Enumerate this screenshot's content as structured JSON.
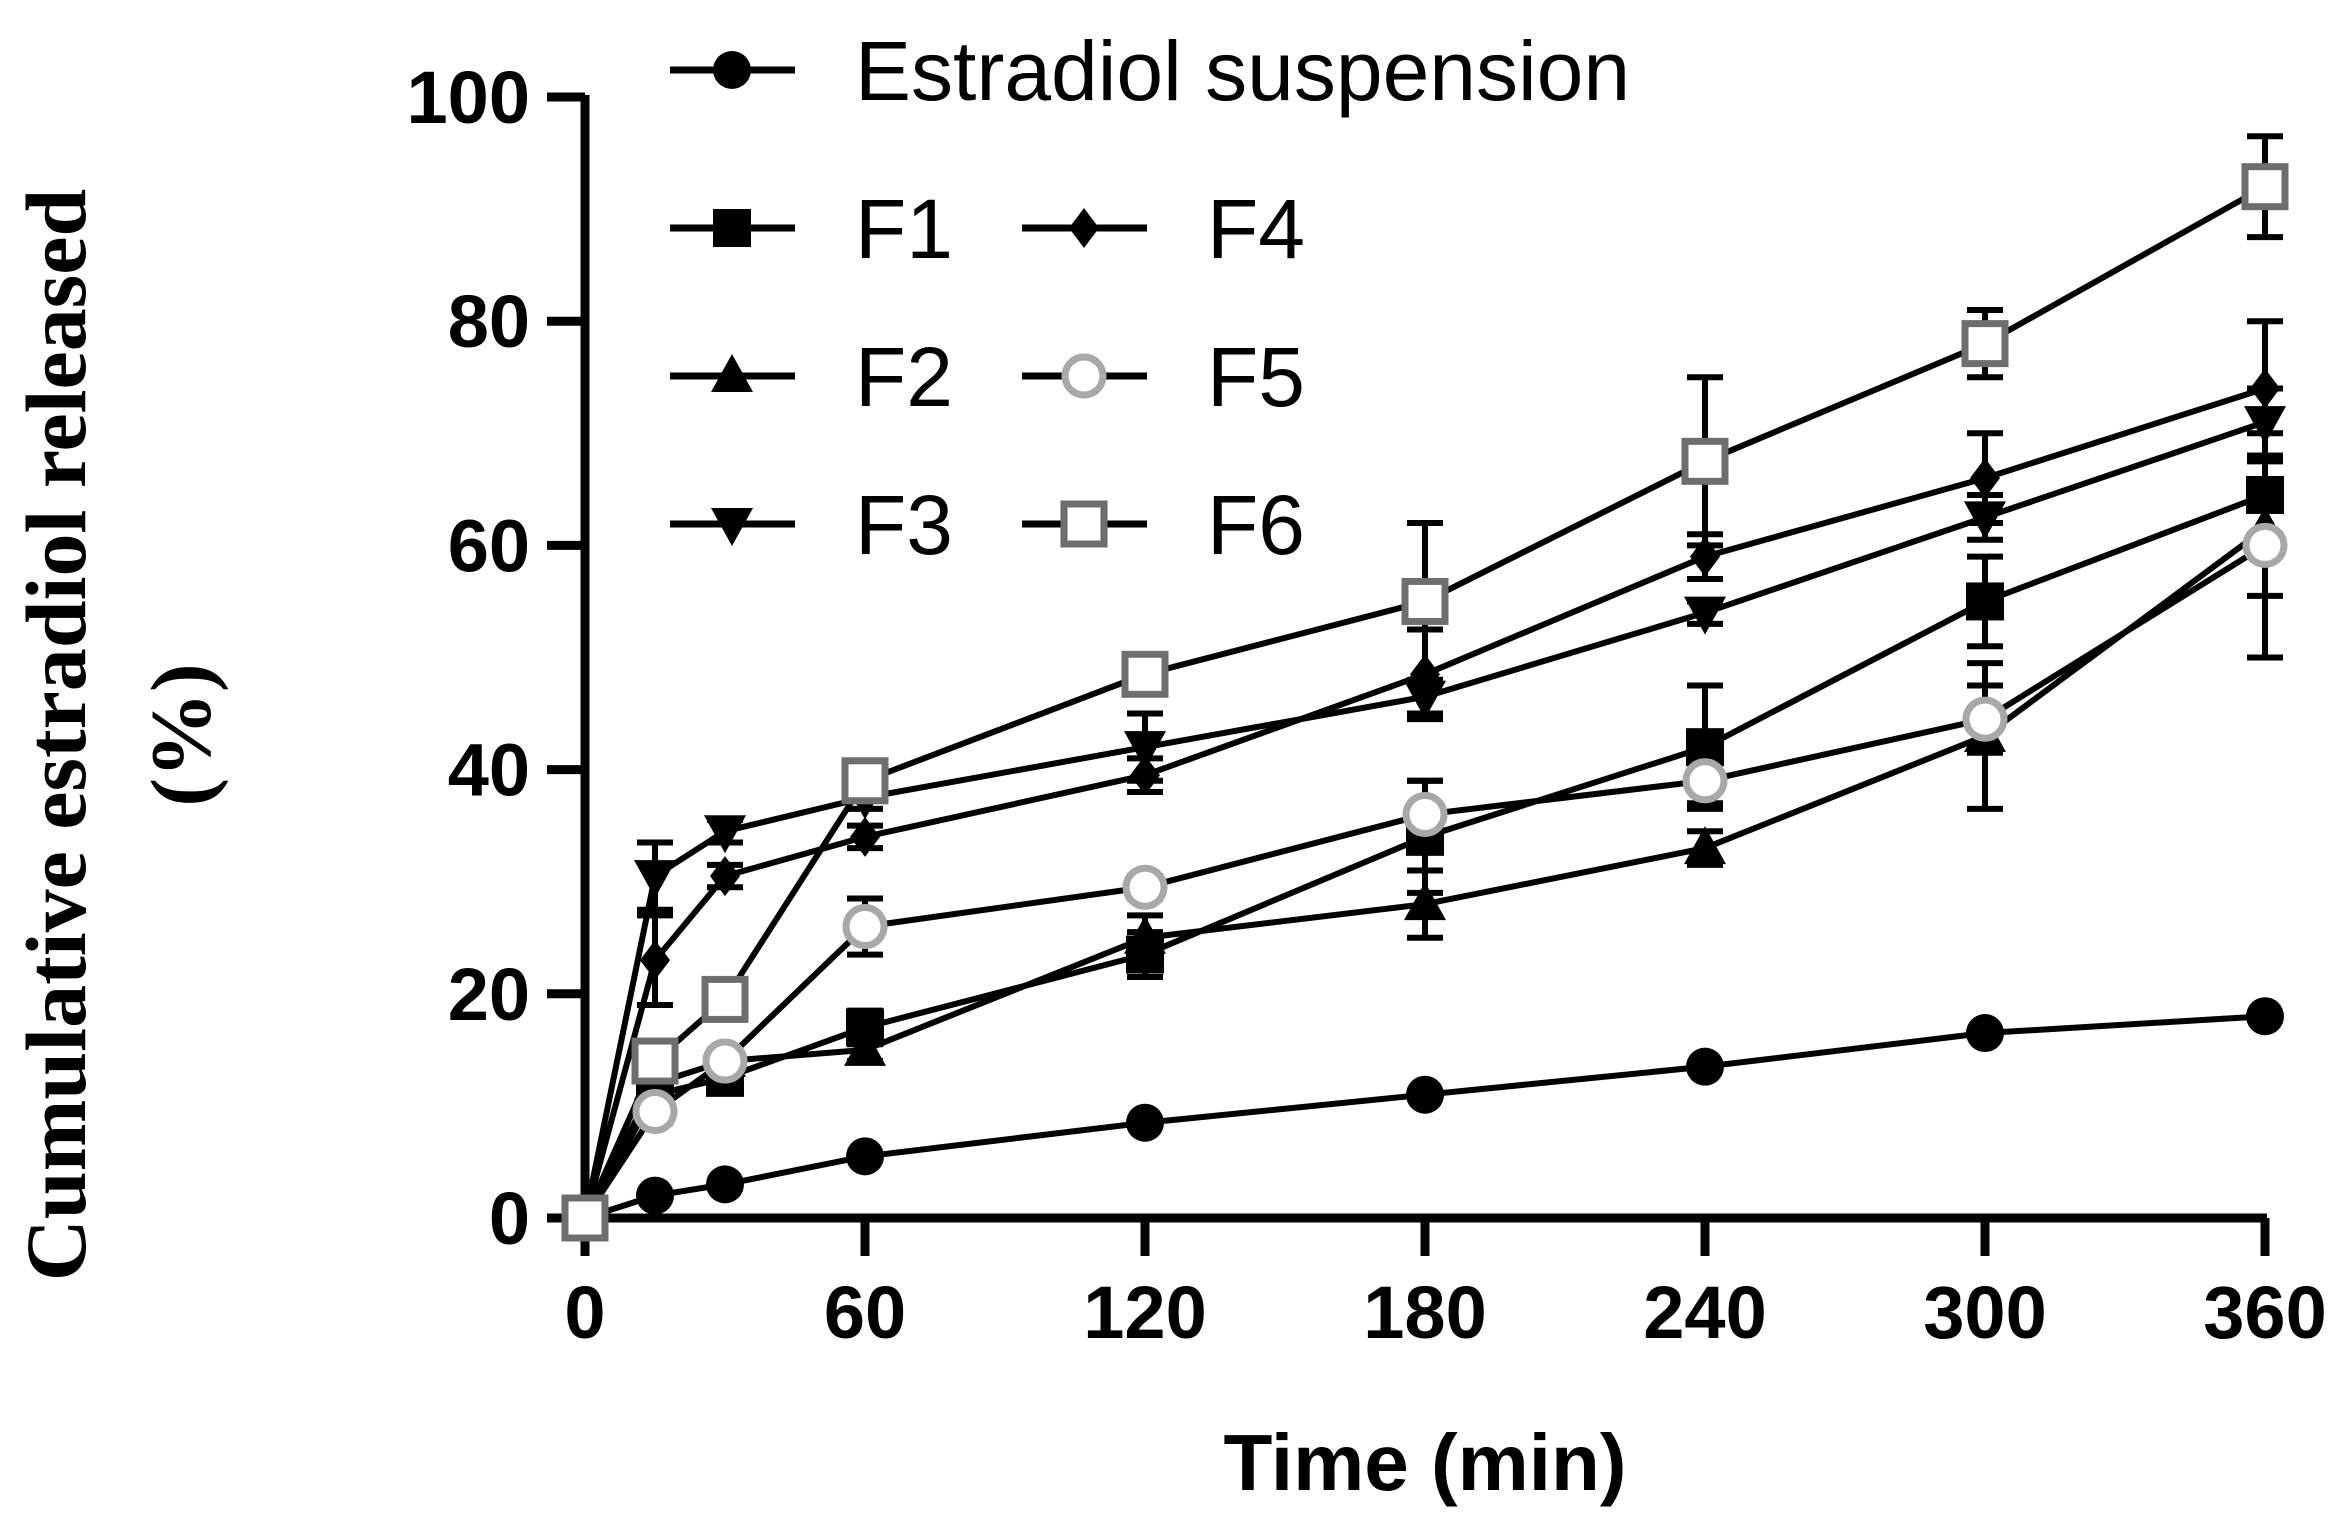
{
  "chart_data": {
    "type": "line",
    "title": "",
    "xlabel": "Time (min)",
    "ylabel_lines": [
      "Cumulative estradiol released",
      "(%)"
    ],
    "xlim": [
      0,
      360
    ],
    "ylim": [
      0,
      100
    ],
    "xticks": [
      0,
      60,
      120,
      180,
      240,
      300,
      360
    ],
    "yticks": [
      0,
      20,
      40,
      60,
      80,
      100
    ],
    "grid": false,
    "legend_position": "top-left",
    "x": [
      0,
      15,
      30,
      60,
      120,
      180,
      240,
      300,
      360
    ],
    "series": [
      {
        "name": "Estradiol suspension",
        "marker": "circle",
        "color": "#000000",
        "values": [
          0,
          2,
          3,
          5.5,
          8.5,
          11,
          13.5,
          16.5,
          18
        ],
        "errors": [
          0,
          0,
          0,
          0,
          0,
          0,
          0,
          0,
          0
        ]
      },
      {
        "name": "F1",
        "marker": "square",
        "color": "#000000",
        "values": [
          0,
          11,
          12.5,
          17,
          23.5,
          34,
          42,
          55,
          64.5
        ],
        "errors": [
          0,
          1,
          1,
          1.5,
          2,
          5,
          5.5,
          4,
          3.5
        ]
      },
      {
        "name": "F2",
        "marker": "triangle-up",
        "color": "#000000",
        "values": [
          0,
          12,
          14,
          15,
          25,
          28,
          33,
          43,
          61.5
        ],
        "errors": [
          0,
          1,
          1,
          1,
          2,
          3,
          1.5,
          6.5,
          6
        ]
      },
      {
        "name": "F3",
        "marker": "triangle-down",
        "color": "#000000",
        "values": [
          0,
          30.5,
          34.5,
          37.5,
          42,
          46.5,
          54,
          62.5,
          71
        ],
        "errors": [
          0,
          3,
          1,
          1,
          3,
          1.5,
          1,
          2,
          3
        ]
      },
      {
        "name": "F4",
        "marker": "diamond",
        "color": "#000000",
        "values": [
          0,
          23,
          30.5,
          34,
          39.5,
          48.5,
          59,
          66,
          74
        ],
        "errors": [
          0,
          4,
          1,
          1,
          1.5,
          4,
          2,
          4,
          6
        ]
      },
      {
        "name": "F5",
        "marker": "circle-open",
        "color": "#a8a8a8",
        "values": [
          0,
          9.5,
          14,
          26,
          29.5,
          36,
          39,
          44.5,
          60
        ],
        "errors": [
          0,
          1,
          1,
          2.5,
          1,
          3,
          2,
          3,
          10
        ]
      },
      {
        "name": "F6",
        "marker": "square-open",
        "color": "#6e6e6e",
        "values": [
          0,
          14,
          19.5,
          39,
          48.5,
          55,
          67.5,
          78,
          92
        ],
        "errors": [
          0,
          1,
          1,
          1,
          1,
          7,
          7.5,
          3,
          4.5
        ]
      }
    ]
  }
}
